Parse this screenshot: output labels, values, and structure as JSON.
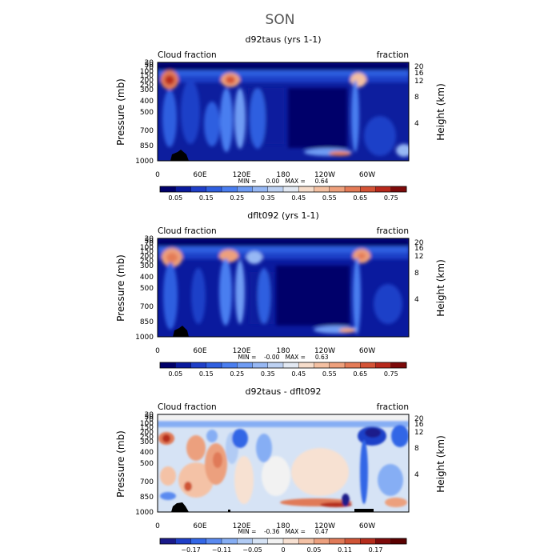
{
  "figure_title": "SON",
  "chart_data": [
    {
      "type": "heatmap",
      "title": "d92taus (yrs 1-1)",
      "left_label": "Cloud fraction",
      "right_label": "fraction",
      "ylabel": "Pressure (mb)",
      "y2label": "Height (km)",
      "xticks": [
        "0",
        "60E",
        "120E",
        "180",
        "120W",
        "60W"
      ],
      "yticks": [
        "30",
        "50",
        "70",
        "100",
        "150",
        "200",
        "250",
        "300",
        "400",
        "500",
        "700",
        "850",
        "1000"
      ],
      "y2ticks": [
        "20",
        "16",
        "12",
        "8",
        "4"
      ],
      "stats": "MIN =     0.00   MAX =     0.64",
      "min": 0.0,
      "max": 0.64,
      "colorbar_labels": [
        "0.05",
        "0.15",
        "0.25",
        "0.35",
        "0.45",
        "0.55",
        "0.65",
        "0.75"
      ],
      "levels": [
        0,
        0.05,
        0.1,
        0.15,
        0.2,
        0.25,
        0.3,
        0.35,
        0.4,
        0.45,
        0.5,
        0.55,
        0.6,
        0.65,
        0.7,
        0.75,
        0.8
      ],
      "xlim_lon": [
        0,
        360
      ],
      "ylim_mb": [
        1000,
        30
      ]
    },
    {
      "type": "heatmap",
      "title": "dflt092 (yrs 1-1)",
      "left_label": "Cloud fraction",
      "right_label": "fraction",
      "ylabel": "Pressure (mb)",
      "y2label": "Height (km)",
      "xticks": [
        "0",
        "60E",
        "120E",
        "180",
        "120W",
        "60W"
      ],
      "yticks": [
        "30",
        "50",
        "70",
        "100",
        "150",
        "200",
        "250",
        "300",
        "400",
        "500",
        "700",
        "850",
        "1000"
      ],
      "y2ticks": [
        "20",
        "16",
        "12",
        "8",
        "4"
      ],
      "stats": "MIN =    -0.00   MAX =     0.63",
      "min": -0.0,
      "max": 0.63,
      "colorbar_labels": [
        "0.05",
        "0.15",
        "0.25",
        "0.35",
        "0.45",
        "0.55",
        "0.65",
        "0.75"
      ],
      "levels": [
        0,
        0.05,
        0.1,
        0.15,
        0.2,
        0.25,
        0.3,
        0.35,
        0.4,
        0.45,
        0.5,
        0.55,
        0.6,
        0.65,
        0.7,
        0.75,
        0.8
      ],
      "xlim_lon": [
        0,
        360
      ],
      "ylim_mb": [
        1000,
        30
      ]
    },
    {
      "type": "heatmap",
      "title": "d92taus - dflt092",
      "left_label": "Cloud fraction",
      "right_label": "fraction",
      "ylabel": "Pressure (mb)",
      "y2label": "Height (km)",
      "xticks": [
        "0",
        "60E",
        "120E",
        "180",
        "120W",
        "60W"
      ],
      "yticks": [
        "30",
        "50",
        "70",
        "100",
        "150",
        "200",
        "250",
        "300",
        "400",
        "500",
        "700",
        "850",
        "1000"
      ],
      "y2ticks": [
        "20",
        "16",
        "12",
        "8",
        "4"
      ],
      "stats": "MIN =    -0.36   MAX =     0.47",
      "min": -0.36,
      "max": 0.47,
      "colorbar_labels": [
        "−0.17",
        "−0.11",
        "−0.05",
        "0",
        "0.05",
        "0.11",
        "0.17"
      ],
      "levels": [
        -0.23,
        -0.2,
        -0.17,
        -0.14,
        -0.11,
        -0.08,
        -0.05,
        -0.02,
        0,
        0.02,
        0.05,
        0.08,
        0.11,
        0.14,
        0.17,
        0.2,
        0.23
      ],
      "xlim_lon": [
        0,
        360
      ],
      "ylim_mb": [
        1000,
        30
      ]
    }
  ],
  "palette": {
    "sequential": [
      "#00006a",
      "#0a1a9e",
      "#1f3fc8",
      "#2f5fe0",
      "#4a7ef0",
      "#6f9cf4",
      "#97b8f4",
      "#bdd1f2",
      "#e2e8f2",
      "#f6ddcb",
      "#f4c0a2",
      "#eea07c",
      "#e47b57",
      "#d45336",
      "#b8291c",
      "#7d0a0a"
    ],
    "diverging": [
      "#1a1a8a",
      "#1f3fc8",
      "#3366e6",
      "#5a8af0",
      "#86aef4",
      "#b1cbf4",
      "#d6e3f5",
      "#f2f2f2",
      "#f7e1d2",
      "#f4c2a6",
      "#eca07e",
      "#e07a58",
      "#cf5436",
      "#b52d1d",
      "#7d0a0a",
      "#5a0000"
    ]
  }
}
